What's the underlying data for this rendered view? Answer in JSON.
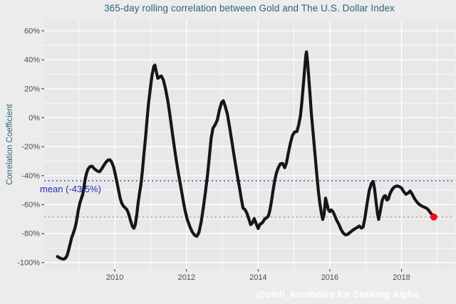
{
  "title": "365-day rolling correlation between Gold and The U.S. Dollar Index",
  "y_axis": {
    "label": "Correlation Coefficient"
  },
  "annotations": {
    "mean_label": "mean (-43.5%)",
    "mean_value": -43.5,
    "latest_value": -68.5
  },
  "watermark": {
    "text": "@oleh_kombalev for Seeking Alpha"
  },
  "colors": {
    "background": "#ececec",
    "panel": "#e8e8e8",
    "grid": "#ffffff",
    "title_text": "#2b6377",
    "axis_text": "#4d4d4d",
    "tick_mark": "#333333",
    "series_line": "#161616",
    "mean_line": "#3535c2",
    "mean_text": "#2424c0",
    "latest_line": "#ec7f7f",
    "latest_dot": "#e8121e"
  },
  "chart_data": {
    "type": "line",
    "title": "365-day rolling correlation between Gold and The U.S. Dollar Index",
    "xlabel": "",
    "ylabel": "Correlation Coefficient",
    "grid": true,
    "x_range": [
      2008.03,
      2019.48
    ],
    "y_range": [
      -104.5,
      67.5
    ],
    "x_ticks": [
      2010,
      2012,
      2014,
      2016,
      2018
    ],
    "x_minor_ticks": [
      2009,
      2011,
      2013,
      2015,
      2017,
      2019
    ],
    "y_ticks": [
      60,
      40,
      20,
      0,
      -20,
      -40,
      -60,
      -80,
      -100
    ],
    "y_tick_labels": [
      "60%",
      "40%",
      "20%",
      "0%",
      "-20%",
      "-40%",
      "-60%",
      "-80%",
      "-100%"
    ],
    "y_minor_ticks": [
      50,
      30,
      10,
      -10,
      -30,
      -50,
      -70,
      -90
    ],
    "mean_value": -43.5,
    "latest_value": -68.5,
    "legend_position": "none",
    "series": [
      {
        "name": "365-day rolling correlation Gold vs USD Index",
        "x": [
          2008.4,
          2008.45,
          2008.51,
          2008.57,
          2008.62,
          2008.67,
          2008.71,
          2008.76,
          2008.8,
          2008.84,
          2008.89,
          2008.93,
          2008.98,
          2009.03,
          2009.07,
          2009.11,
          2009.14,
          2009.17,
          2009.21,
          2009.25,
          2009.31,
          2009.37,
          2009.44,
          2009.51,
          2009.57,
          2009.63,
          2009.69,
          2009.75,
          2009.81,
          2009.86,
          2009.91,
          2009.96,
          2010.01,
          2010.06,
          2010.11,
          2010.15,
          2010.19,
          2010.24,
          2010.29,
          2010.34,
          2010.39,
          2010.44,
          2010.49,
          2010.53,
          2010.57,
          2010.61,
          2010.65,
          2010.69,
          2010.73,
          2010.77,
          2010.81,
          2010.86,
          2010.9,
          2010.94,
          2010.99,
          2011.04,
          2011.09,
          2011.12,
          2011.16,
          2011.2,
          2011.25,
          2011.3,
          2011.36,
          2011.42,
          2011.48,
          2011.54,
          2011.6,
          2011.66,
          2011.72,
          2011.78,
          2011.84,
          2011.9,
          2011.96,
          2012.02,
          2012.09,
          2012.16,
          2012.23,
          2012.29,
          2012.35,
          2012.41,
          2012.47,
          2012.53,
          2012.59,
          2012.64,
          2012.69,
          2012.74,
          2012.8,
          2012.86,
          2012.92,
          2012.98,
          2013.03,
          2013.08,
          2013.14,
          2013.2,
          2013.27,
          2013.34,
          2013.41,
          2013.47,
          2013.53,
          2013.58,
          2013.63,
          2013.68,
          2013.73,
          2013.79,
          2013.84,
          2013.89,
          2013.95,
          2014.0,
          2014.05,
          2014.09,
          2014.13,
          2014.17,
          2014.21,
          2014.25,
          2014.29,
          2014.33,
          2014.37,
          2014.41,
          2014.46,
          2014.51,
          2014.57,
          2014.62,
          2014.68,
          2014.74,
          2014.79,
          2014.84,
          2014.9,
          2014.96,
          2015.02,
          2015.08,
          2015.13,
          2015.18,
          2015.22,
          2015.26,
          2015.3,
          2015.33,
          2015.35,
          2015.38,
          2015.41,
          2015.45,
          2015.48,
          2015.52,
          2015.56,
          2015.6,
          2015.64,
          2015.68,
          2015.72,
          2015.76,
          2015.8,
          2015.84,
          2015.88,
          2015.92,
          2015.96,
          2016.0,
          2016.04,
          2016.09,
          2016.14,
          2016.19,
          2016.25,
          2016.31,
          2016.37,
          2016.43,
          2016.49,
          2016.55,
          2016.62,
          2016.69,
          2016.76,
          2016.82,
          2016.88,
          2016.93,
          2016.98,
          2017.04,
          2017.1,
          2017.16,
          2017.21,
          2017.25,
          2017.29,
          2017.33,
          2017.36,
          2017.41,
          2017.46,
          2017.51,
          2017.55,
          2017.59,
          2017.63,
          2017.68,
          2017.73,
          2017.78,
          2017.84,
          2017.89,
          2017.94,
          2018.0,
          2018.06,
          2018.12,
          2018.18,
          2018.24,
          2018.3,
          2018.36,
          2018.43,
          2018.5,
          2018.57,
          2018.64,
          2018.7,
          2018.76,
          2018.82,
          2018.87,
          2018.9
        ],
        "y": [
          -95.8,
          -96.6,
          -97.3,
          -97.6,
          -97.0,
          -95.0,
          -91.5,
          -86.5,
          -82.5,
          -80.0,
          -76.0,
          -71.5,
          -64.0,
          -58.5,
          -55.5,
          -52.5,
          -48.0,
          -43.0,
          -38.5,
          -35.5,
          -33.7,
          -33.5,
          -35.5,
          -36.8,
          -37.3,
          -35.5,
          -33.0,
          -30.8,
          -29.2,
          -29.0,
          -30.5,
          -33.5,
          -38.5,
          -44.5,
          -50.5,
          -55.5,
          -58.8,
          -61.0,
          -62.2,
          -63.5,
          -66.5,
          -71.0,
          -75.0,
          -76.3,
          -74.0,
          -67.5,
          -59.0,
          -52.0,
          -46.0,
          -37.0,
          -26.0,
          -13.0,
          -1.0,
          9.5,
          20.0,
          29.5,
          35.5,
          36.3,
          31.5,
          27.2,
          28.3,
          28.8,
          25.8,
          19.5,
          11.5,
          1.5,
          -9.5,
          -20.0,
          -30.0,
          -39.0,
          -47.5,
          -56.0,
          -64.0,
          -70.0,
          -74.8,
          -78.8,
          -81.2,
          -81.8,
          -79.0,
          -72.0,
          -62.0,
          -51.0,
          -39.0,
          -26.5,
          -14.0,
          -7.2,
          -4.8,
          -1.5,
          5.5,
          10.5,
          11.7,
          8.0,
          2.5,
          -6.0,
          -17.0,
          -28.0,
          -38.5,
          -47.0,
          -56.0,
          -62.5,
          -63.3,
          -65.5,
          -69.0,
          -73.8,
          -72.5,
          -69.6,
          -73.5,
          -76.5,
          -73.5,
          -73.0,
          -72.0,
          -70.3,
          -69.3,
          -68.8,
          -67.5,
          -63.5,
          -58.0,
          -51.0,
          -43.5,
          -38.0,
          -34.0,
          -31.8,
          -31.5,
          -34.5,
          -31.0,
          -24.5,
          -17.5,
          -12.0,
          -9.8,
          -9.5,
          -5.0,
          1.5,
          11.0,
          22.5,
          34.5,
          43.0,
          45.5,
          38.5,
          28.0,
          15.0,
          4.0,
          -7.0,
          -18.0,
          -29.0,
          -40.0,
          -50.5,
          -59.0,
          -65.5,
          -70.2,
          -66.5,
          -55.5,
          -59.5,
          -63.5,
          -64.8,
          -63.6,
          -65.0,
          -67.8,
          -70.8,
          -73.5,
          -77.0,
          -79.5,
          -80.8,
          -80.6,
          -79.4,
          -78.0,
          -76.8,
          -75.8,
          -74.7,
          -76.2,
          -75.3,
          -69.0,
          -59.0,
          -50.0,
          -45.3,
          -44.0,
          -49.5,
          -58.0,
          -66.0,
          -70.2,
          -64.0,
          -57.0,
          -54.3,
          -53.8,
          -56.8,
          -56.2,
          -52.3,
          -49.8,
          -48.2,
          -47.3,
          -47.1,
          -47.6,
          -48.5,
          -51.0,
          -52.8,
          -52.0,
          -50.6,
          -52.8,
          -55.8,
          -58.2,
          -60.0,
          -61.0,
          -61.8,
          -62.5,
          -64.0,
          -66.0,
          -67.5,
          -68.5
        ]
      }
    ]
  }
}
